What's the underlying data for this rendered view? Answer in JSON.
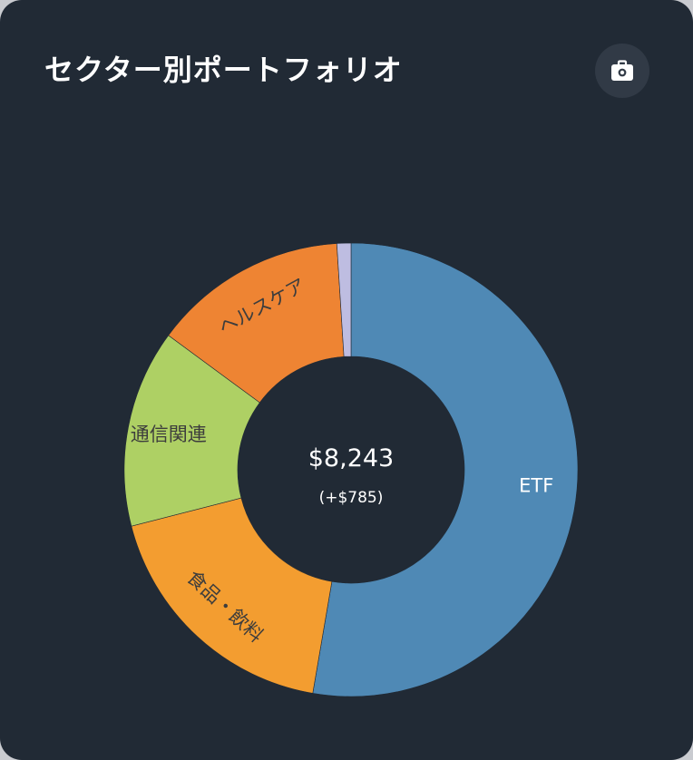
{
  "header": {
    "title": "セクター別ポートフォリオ",
    "icon": "briefcase-icon"
  },
  "summary": {
    "total": "$8,243",
    "change": "(+$785)"
  },
  "chart_data": {
    "type": "pie",
    "donut": true,
    "start_angle_deg": 0,
    "direction": "clockwise",
    "legend": "none",
    "slices": [
      {
        "label": "ETF",
        "value": 52.7,
        "color": "#4f89b5",
        "label_color": "#ffffff"
      },
      {
        "label": "食品・飲料",
        "value": 18.3,
        "color": "#f39d30",
        "label_color": "#3d3d3d"
      },
      {
        "label": "通信関連",
        "value": 14.1,
        "color": "#aed064",
        "label_color": "#3d3d3d"
      },
      {
        "label": "ヘルスケア",
        "value": 13.9,
        "color": "#ee8433",
        "label_color": "#3d3d3d"
      },
      {
        "label": "",
        "value": 1.0,
        "color": "#bebde1",
        "label_color": "#3d3d3d"
      }
    ]
  }
}
